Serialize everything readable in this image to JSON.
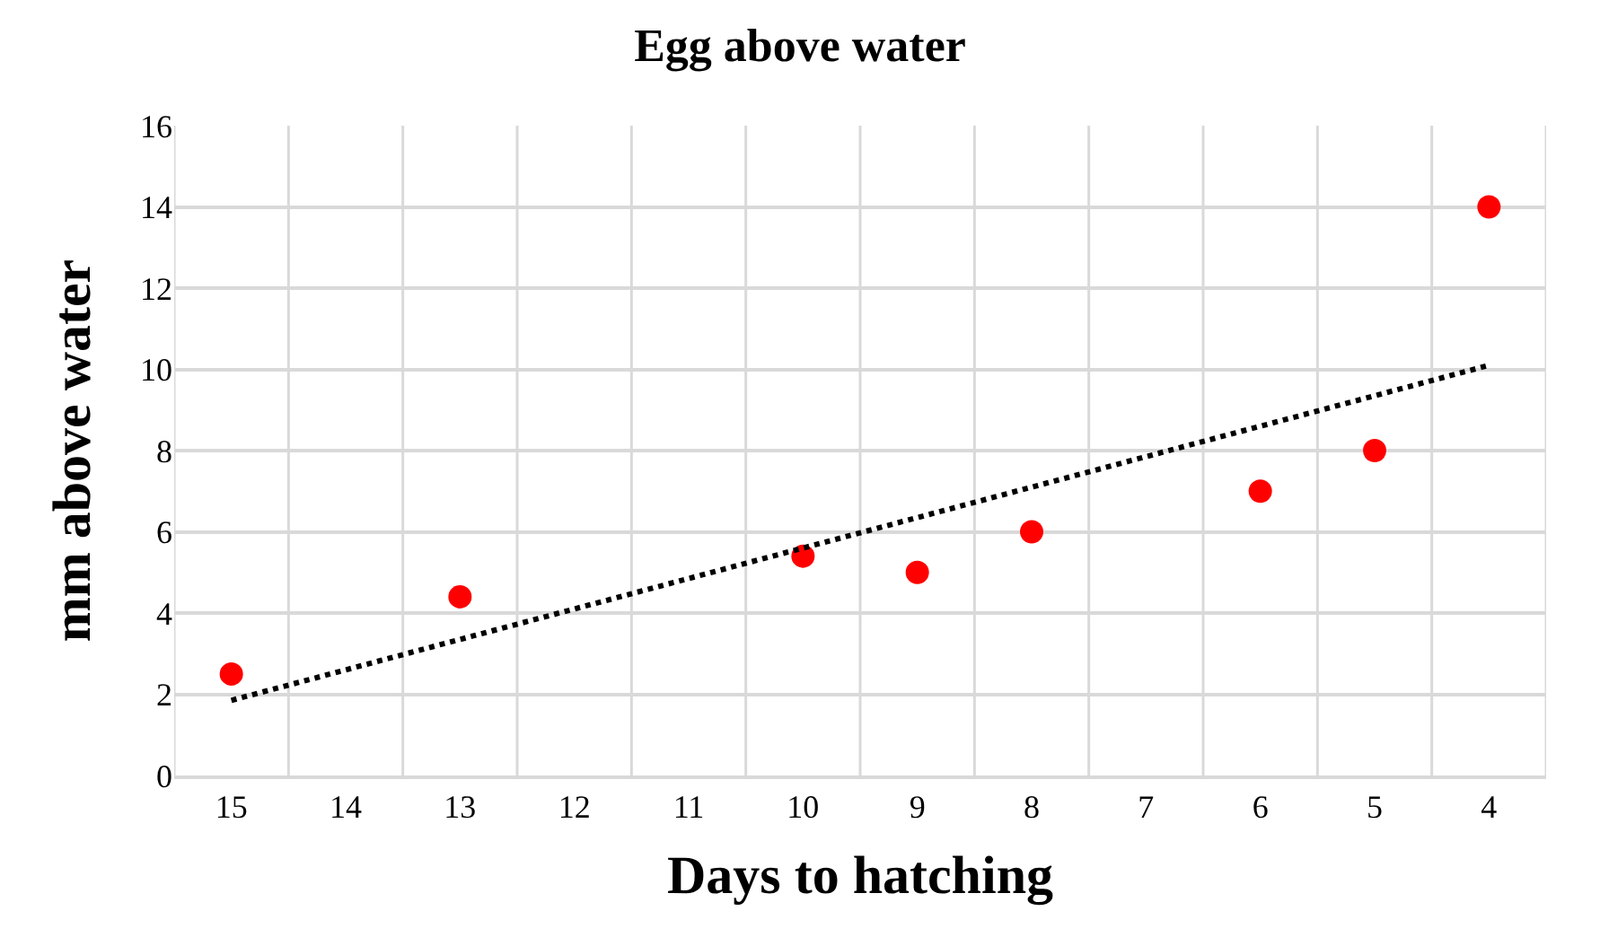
{
  "chart_data": {
    "type": "scatter",
    "title": "Egg above water",
    "xlabel": "Days to hatching",
    "ylabel": "mm above water",
    "categories": [
      "15",
      "14",
      "13",
      "12",
      "11",
      "10",
      "9",
      "8",
      "7",
      "6",
      "5",
      "4"
    ],
    "series": [
      {
        "color": "#ff0000",
        "marker": "circle",
        "values": [
          2.5,
          null,
          4.4,
          null,
          null,
          5.4,
          5.0,
          6.0,
          null,
          7.0,
          8.0,
          14.0
        ]
      },
      {
        "type": "line",
        "color": "#000000",
        "marker": "none",
        "line_style": "dotted",
        "values": [
          1.85,
          null,
          null,
          null,
          null,
          null,
          null,
          null,
          null,
          null,
          null,
          10.1
        ]
      }
    ],
    "ylim": [
      0,
      16
    ],
    "yticks": [
      0,
      2,
      4,
      6,
      8,
      10,
      12,
      14,
      16
    ],
    "grid": true,
    "legend": false
  }
}
